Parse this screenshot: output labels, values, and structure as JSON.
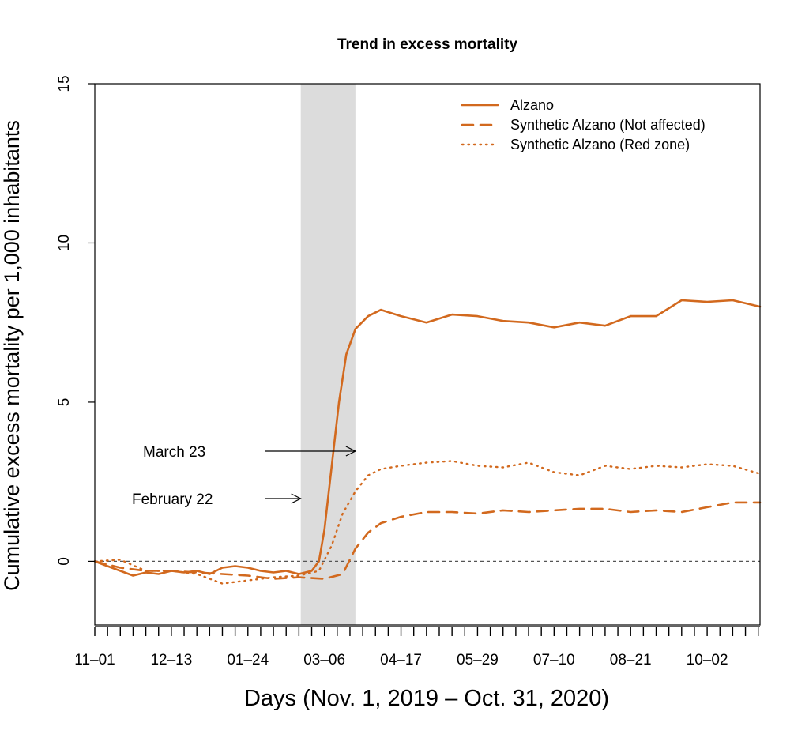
{
  "chart_data": {
    "type": "line",
    "title": "Trend in excess mortality",
    "xlabel": "Days (Nov. 1, 2019 – Oct. 31, 2020)",
    "ylabel": "Cumulative excess mortality per 1,000 inhabitants",
    "xlim": [
      "2019-11-01",
      "2020-10-31"
    ],
    "ylim": [
      -2,
      15
    ],
    "yticks": [
      0,
      5,
      10,
      15
    ],
    "x_tick_labels": [
      {
        "date": "2019-11-01",
        "label": "11–01"
      },
      {
        "date": "2019-12-13",
        "label": "12–13"
      },
      {
        "date": "2020-01-24",
        "label": "01–24"
      },
      {
        "date": "2020-03-06",
        "label": "03–06"
      },
      {
        "date": "2020-04-17",
        "label": "04–17"
      },
      {
        "date": "2020-05-29",
        "label": "05–29"
      },
      {
        "date": "2020-07-10",
        "label": "07–10"
      },
      {
        "date": "2020-08-21",
        "label": "08–21"
      },
      {
        "date": "2020-10-02",
        "label": "10–02"
      }
    ],
    "shaded_period": [
      "2020-02-22",
      "2020-03-23"
    ],
    "reference_line_y": 0,
    "legend_position": "top-right",
    "color": "#d2691e",
    "annotations": [
      {
        "text": "March 23",
        "arrow_to": "2020-03-23"
      },
      {
        "text": "February 22",
        "arrow_to": "2020-02-22"
      }
    ],
    "series": [
      {
        "name": "Alzano",
        "style": "solid",
        "points": [
          [
            "2019-11-01",
            0
          ],
          [
            "2019-11-08",
            -0.15
          ],
          [
            "2019-11-15",
            -0.3
          ],
          [
            "2019-11-22",
            -0.45
          ],
          [
            "2019-11-29",
            -0.35
          ],
          [
            "2019-12-06",
            -0.4
          ],
          [
            "2019-12-13",
            -0.3
          ],
          [
            "2019-12-20",
            -0.35
          ],
          [
            "2019-12-27",
            -0.3
          ],
          [
            "2020-01-03",
            -0.4
          ],
          [
            "2020-01-10",
            -0.2
          ],
          [
            "2020-01-17",
            -0.15
          ],
          [
            "2020-01-24",
            -0.2
          ],
          [
            "2020-01-31",
            -0.3
          ],
          [
            "2020-02-07",
            -0.35
          ],
          [
            "2020-02-14",
            -0.3
          ],
          [
            "2020-02-21",
            -0.4
          ],
          [
            "2020-02-28",
            -0.3
          ],
          [
            "2020-03-03",
            0
          ],
          [
            "2020-03-06",
            1
          ],
          [
            "2020-03-10",
            3
          ],
          [
            "2020-03-14",
            5
          ],
          [
            "2020-03-18",
            6.5
          ],
          [
            "2020-03-23",
            7.3
          ],
          [
            "2020-03-30",
            7.7
          ],
          [
            "2020-04-06",
            7.9
          ],
          [
            "2020-04-17",
            7.7
          ],
          [
            "2020-05-01",
            7.5
          ],
          [
            "2020-05-15",
            7.75
          ],
          [
            "2020-05-29",
            7.7
          ],
          [
            "2020-06-12",
            7.55
          ],
          [
            "2020-06-26",
            7.5
          ],
          [
            "2020-07-10",
            7.35
          ],
          [
            "2020-07-24",
            7.5
          ],
          [
            "2020-08-07",
            7.4
          ],
          [
            "2020-08-21",
            7.7
          ],
          [
            "2020-09-04",
            7.7
          ],
          [
            "2020-09-18",
            8.2
          ],
          [
            "2020-10-02",
            8.15
          ],
          [
            "2020-10-16",
            8.2
          ],
          [
            "2020-10-31",
            8.0
          ]
        ]
      },
      {
        "name": "Synthetic Alzano (Not affected)",
        "style": "dashed",
        "points": [
          [
            "2019-11-01",
            0
          ],
          [
            "2019-11-15",
            -0.2
          ],
          [
            "2019-11-29",
            -0.3
          ],
          [
            "2019-12-13",
            -0.3
          ],
          [
            "2019-12-27",
            -0.35
          ],
          [
            "2020-01-10",
            -0.4
          ],
          [
            "2020-01-24",
            -0.45
          ],
          [
            "2020-02-07",
            -0.55
          ],
          [
            "2020-02-21",
            -0.5
          ],
          [
            "2020-03-06",
            -0.55
          ],
          [
            "2020-03-16",
            -0.4
          ],
          [
            "2020-03-23",
            0.4
          ],
          [
            "2020-03-30",
            0.9
          ],
          [
            "2020-04-06",
            1.2
          ],
          [
            "2020-04-17",
            1.4
          ],
          [
            "2020-05-01",
            1.55
          ],
          [
            "2020-05-15",
            1.55
          ],
          [
            "2020-05-29",
            1.5
          ],
          [
            "2020-06-12",
            1.6
          ],
          [
            "2020-06-26",
            1.55
          ],
          [
            "2020-07-10",
            1.6
          ],
          [
            "2020-07-24",
            1.65
          ],
          [
            "2020-08-07",
            1.65
          ],
          [
            "2020-08-21",
            1.55
          ],
          [
            "2020-09-04",
            1.6
          ],
          [
            "2020-09-18",
            1.55
          ],
          [
            "2020-10-02",
            1.7
          ],
          [
            "2020-10-16",
            1.85
          ],
          [
            "2020-10-31",
            1.85
          ]
        ]
      },
      {
        "name": "Synthetic Alzano (Red zone)",
        "style": "dotted",
        "points": [
          [
            "2019-11-01",
            0
          ],
          [
            "2019-11-15",
            0.05
          ],
          [
            "2019-11-29",
            -0.3
          ],
          [
            "2019-12-13",
            -0.3
          ],
          [
            "2019-12-27",
            -0.4
          ],
          [
            "2020-01-10",
            -0.7
          ],
          [
            "2020-01-24",
            -0.6
          ],
          [
            "2020-02-07",
            -0.5
          ],
          [
            "2020-02-21",
            -0.45
          ],
          [
            "2020-03-03",
            -0.3
          ],
          [
            "2020-03-10",
            0.5
          ],
          [
            "2020-03-16",
            1.5
          ],
          [
            "2020-03-23",
            2.2
          ],
          [
            "2020-03-30",
            2.7
          ],
          [
            "2020-04-06",
            2.9
          ],
          [
            "2020-04-17",
            3.0
          ],
          [
            "2020-05-01",
            3.1
          ],
          [
            "2020-05-15",
            3.15
          ],
          [
            "2020-05-29",
            3.0
          ],
          [
            "2020-06-12",
            2.95
          ],
          [
            "2020-06-26",
            3.1
          ],
          [
            "2020-07-10",
            2.8
          ],
          [
            "2020-07-24",
            2.7
          ],
          [
            "2020-08-07",
            3.0
          ],
          [
            "2020-08-21",
            2.9
          ],
          [
            "2020-09-04",
            3.0
          ],
          [
            "2020-09-18",
            2.95
          ],
          [
            "2020-10-02",
            3.05
          ],
          [
            "2020-10-16",
            3.0
          ],
          [
            "2020-10-31",
            2.75
          ]
        ]
      }
    ]
  }
}
